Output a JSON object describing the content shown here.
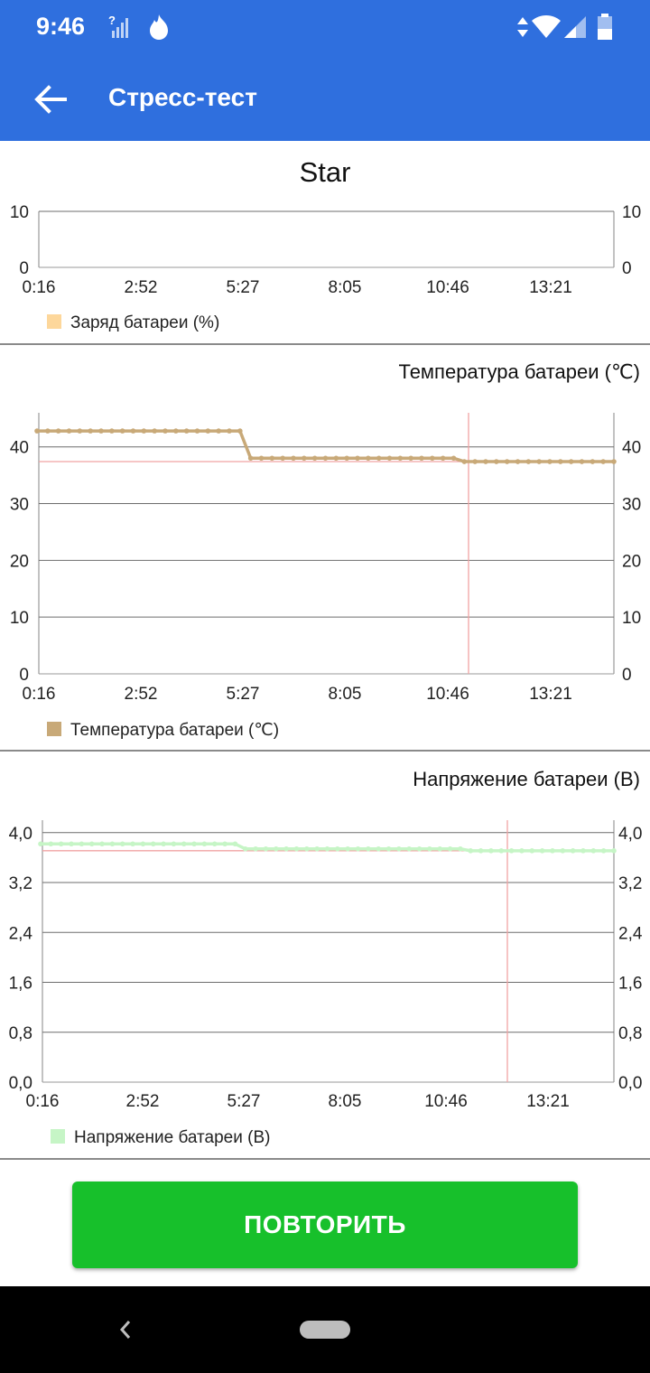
{
  "status_bar": {
    "time": "9:46",
    "icons": [
      "signal-unknown-icon",
      "flame-notification-icon",
      "data-arrows-icon",
      "wifi-icon",
      "cell-signal-icon",
      "battery-icon"
    ]
  },
  "app_bar": {
    "title": "Стресс-тест",
    "back_icon": "arrow-left-icon"
  },
  "colors": {
    "app_bar": "#2f6fde",
    "battery_charge": "#fdd79b",
    "battery_temperature": "#c8a978",
    "battery_voltage": "#c6f5c6",
    "marker_line": "#f1a3a3",
    "button": "#17c02b"
  },
  "chart_data": [
    {
      "type": "line",
      "title": "Star",
      "x_ticks": [
        "0:16",
        "2:52",
        "5:27",
        "8:05",
        "10:46",
        "13:21"
      ],
      "y_ticks": [
        "0",
        "10"
      ],
      "ylim": [
        0,
        10
      ],
      "grid": true,
      "legend": "bottom-left",
      "series": [
        {
          "name": "Заряд батареи (%)",
          "color": "#fdd79b",
          "values": []
        }
      ]
    },
    {
      "type": "line",
      "title": "Температура батареи (℃)",
      "x_ticks": [
        "0:16",
        "2:52",
        "5:27",
        "8:05",
        "10:46",
        "13:21"
      ],
      "y_ticks": [
        "0",
        "10",
        "20",
        "30",
        "40"
      ],
      "ylim": [
        0,
        46
      ],
      "grid": true,
      "legend": "bottom-left",
      "reference_value": 37.4,
      "series": [
        {
          "name": "Температура батареи (℃)",
          "color": "#c8a978",
          "segments": [
            {
              "from_index": 0,
              "to_index": 19,
              "value": 42.8
            },
            {
              "from_index": 20,
              "to_index": 39,
              "value": 38.0
            },
            {
              "from_index": 40,
              "to_index": 54,
              "value": 37.4
            }
          ]
        }
      ]
    },
    {
      "type": "line",
      "title": "Напряжение батареи (В)",
      "x_ticks": [
        "0:16",
        "2:52",
        "5:27",
        "8:05",
        "10:46",
        "13:21"
      ],
      "y_ticks": [
        "0,0",
        "0,8",
        "1,6",
        "2,4",
        "3,2",
        "4,0"
      ],
      "ylim": [
        0,
        4.2
      ],
      "grid": true,
      "legend": "bottom-left",
      "reference_value": 3.71,
      "series": [
        {
          "name": "Напряжение батареи (В)",
          "color": "#c6f5c6",
          "segments": [
            {
              "from_index": 0,
              "to_index": 19,
              "value": 3.82
            },
            {
              "from_index": 20,
              "to_index": 41,
              "value": 3.74
            },
            {
              "from_index": 42,
              "to_index": 56,
              "value": 3.71
            }
          ]
        }
      ]
    }
  ],
  "button": {
    "label": "ПОВТОРИТЬ"
  },
  "nav_bar": {
    "icons": [
      "nav-back-icon",
      "nav-home-pill-icon"
    ]
  }
}
